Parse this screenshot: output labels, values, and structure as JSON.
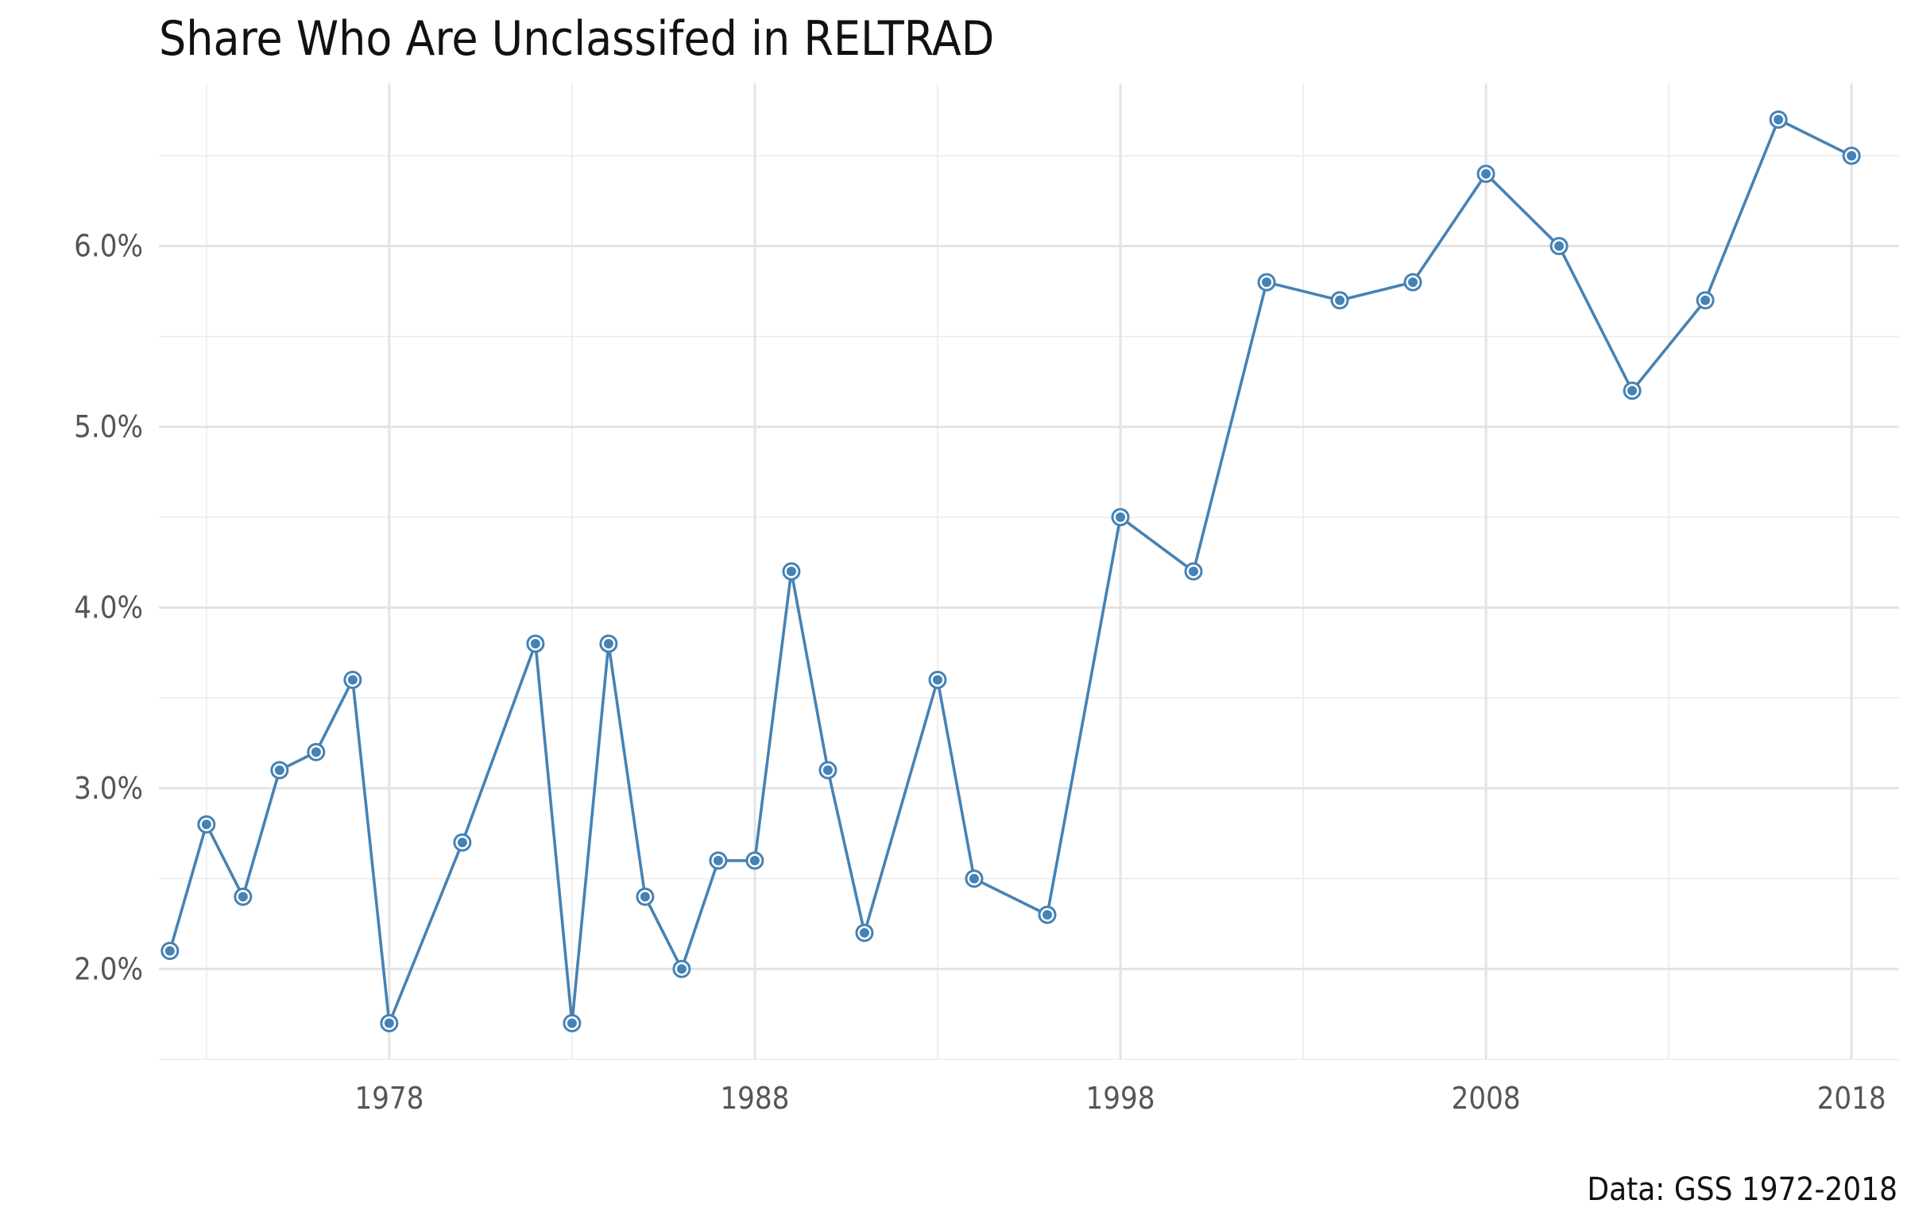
{
  "chart_data": {
    "type": "line",
    "title": "Share Who Are Unclassifed in RELTRAD",
    "caption": "Data: GSS 1972-2018",
    "xlabel": "",
    "ylabel": "",
    "x_ticks": [
      "1978",
      "1988",
      "1998",
      "2008",
      "2018"
    ],
    "y_ticks": [
      "2.0%",
      "3.0%",
      "4.0%",
      "5.0%",
      "6.0%"
    ],
    "xlim": [
      1971.7,
      2019.3
    ],
    "ylim": [
      1.5,
      6.9
    ],
    "grid": true,
    "line_color": "#4682b4",
    "series": [
      {
        "x": [
          1972,
          1973,
          1974,
          1975,
          1976,
          1977,
          1978,
          1980,
          1982,
          1983,
          1984,
          1985,
          1986,
          1987,
          1988,
          1989,
          1990,
          1991,
          1993,
          1994,
          1996,
          1998,
          2000,
          2002,
          2004,
          2006,
          2008,
          2010,
          2012,
          2014,
          2016,
          2018
        ],
        "y": [
          2.1,
          2.8,
          2.4,
          3.1,
          3.2,
          3.6,
          1.7,
          2.7,
          3.8,
          1.7,
          3.8,
          2.4,
          2.0,
          2.6,
          2.6,
          4.2,
          3.1,
          2.2,
          3.6,
          2.5,
          2.3,
          4.5,
          4.2,
          5.8,
          5.7,
          5.8,
          6.4,
          6.0,
          5.2,
          5.7,
          6.7,
          6.5
        ]
      }
    ]
  }
}
